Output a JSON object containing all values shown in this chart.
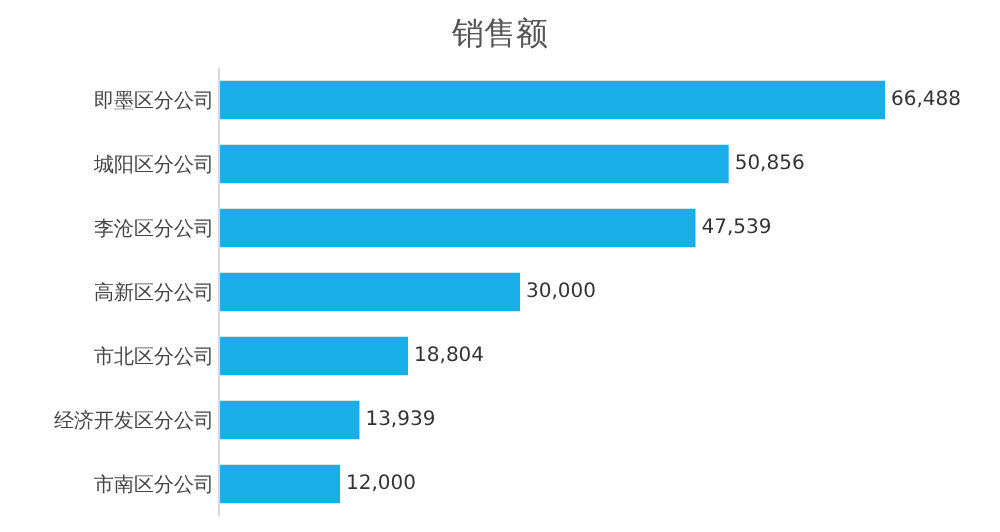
{
  "chart_data": {
    "type": "bar",
    "orientation": "horizontal",
    "title": "销售额",
    "categories": [
      "即墨区分公司",
      "城阳区分公司",
      "李沧区分公司",
      "高新区分公司",
      "市北区分公司",
      "经济开发区分公司",
      "市南区分公司"
    ],
    "values": [
      66488,
      50856,
      47539,
      30000,
      18804,
      13939,
      12000
    ],
    "value_labels": [
      "66,488",
      "50,856",
      "47,539",
      "30,000",
      "18,804",
      "13,939",
      "12,000"
    ],
    "color": "#1aaee8",
    "grid": false,
    "legend": false
  }
}
